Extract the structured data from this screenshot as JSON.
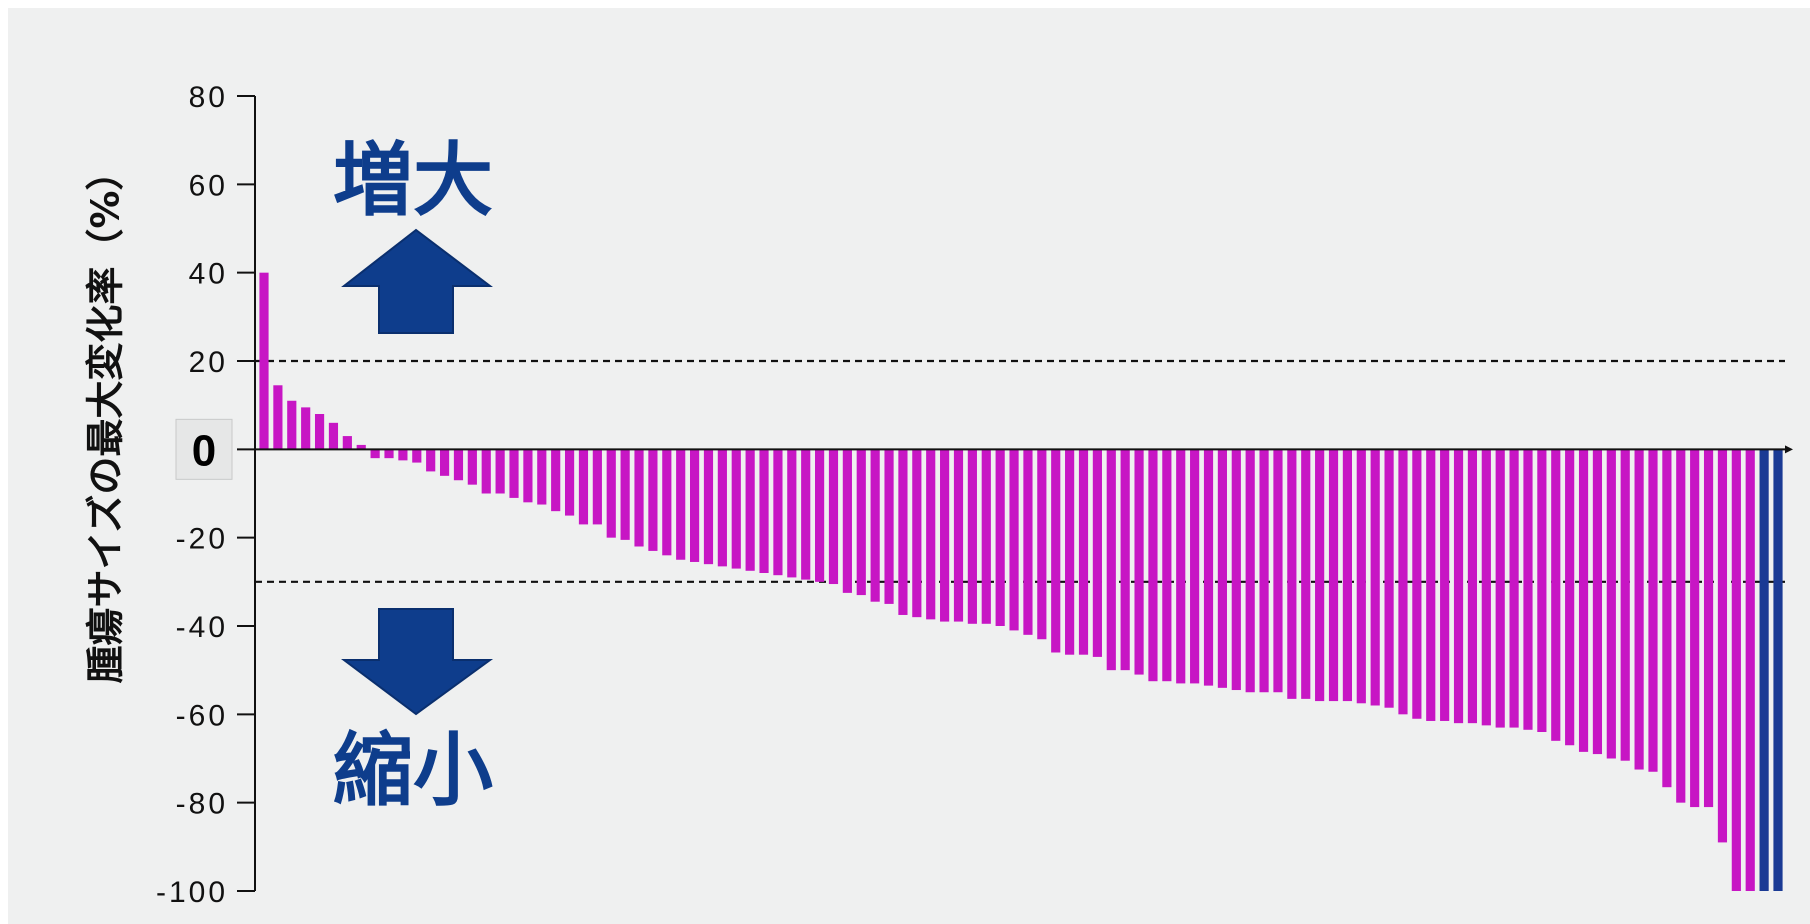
{
  "chart_data": {
    "type": "bar",
    "title": "",
    "xlabel": "",
    "ylabel": "腫瘍サイズの最大変化率（%）",
    "ylim": [
      -100,
      80
    ],
    "yticks": [
      80,
      60,
      40,
      20,
      0,
      -20,
      -40,
      -60,
      -80,
      -100
    ],
    "ytick_labels": [
      "80",
      "60",
      "40",
      "20",
      "0",
      "-20",
      "-40",
      "-60",
      "-80",
      "-100"
    ],
    "reference_lines": [
      20,
      -30
    ],
    "grid": false,
    "annotations": {
      "increase_label": "増大",
      "decrease_label": "縮小"
    },
    "colors": {
      "bar": "#c716c4",
      "bar_complete_response": "#1a3a94",
      "arrow": "#0e3d8c",
      "background": "#eff0f0"
    },
    "values": [
      40,
      14.5,
      11,
      9.5,
      8,
      6,
      3,
      1,
      -2,
      -2,
      -2.5,
      -3,
      -5,
      -6,
      -7,
      -8,
      -10,
      -10,
      -11,
      -12,
      -12.5,
      -14,
      -15,
      -17,
      -17,
      -20,
      -20.5,
      -22,
      -23,
      -24,
      -25,
      -25.5,
      -26,
      -26.5,
      -27,
      -27.5,
      -28,
      -28.5,
      -29,
      -29.5,
      -30,
      -30.5,
      -32.5,
      -33,
      -34.5,
      -35,
      -37.5,
      -38,
      -38.5,
      -39,
      -39,
      -39.5,
      -39.5,
      -40,
      -41,
      -42,
      -43,
      -46,
      -46.5,
      -46.5,
      -47,
      -50,
      -50,
      -51,
      -52.5,
      -52.5,
      -53,
      -53,
      -53.5,
      -54,
      -54.5,
      -55,
      -55,
      -55,
      -56.5,
      -56.5,
      -57,
      -57,
      -57,
      -57.5,
      -58,
      -58.5,
      -60,
      -61,
      -61.5,
      -61.5,
      -62,
      -62,
      -62.5,
      -63,
      -63,
      -63.5,
      -64,
      -66,
      -67,
      -68.5,
      -69,
      -70,
      -70.5,
      -72.5,
      -73,
      -76.5,
      -80,
      -81,
      -81,
      -89,
      -100,
      -100,
      -100,
      -100
    ],
    "highlight_from_index": 108
  }
}
